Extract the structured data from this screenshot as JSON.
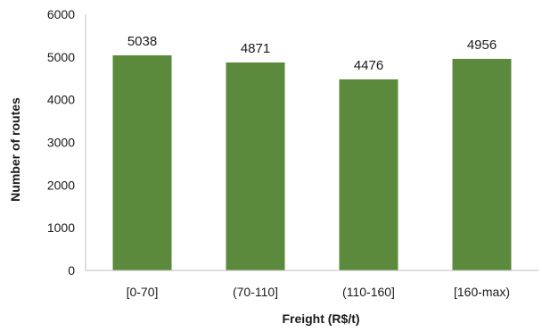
{
  "chart_data": {
    "type": "bar",
    "categories": [
      "[0-70]",
      "(70-110]",
      "(110-160]",
      "[160-max)"
    ],
    "values": [
      5038,
      4871,
      4476,
      4956
    ],
    "data_labels": [
      "5038",
      "4871",
      "4476",
      "4956"
    ],
    "xlabel": "Freight (R$/t)",
    "ylabel": "Number of routes",
    "ylim": [
      0,
      6000
    ],
    "yticks": [
      0,
      1000,
      2000,
      3000,
      4000,
      5000,
      6000
    ],
    "ytick_labels": [
      "0",
      "1000",
      "2000",
      "3000",
      "4000",
      "5000",
      "6000"
    ],
    "grid": false,
    "legend": "none",
    "bar_color": "#5b8a3c",
    "axis_color": "#bfbfbf"
  }
}
